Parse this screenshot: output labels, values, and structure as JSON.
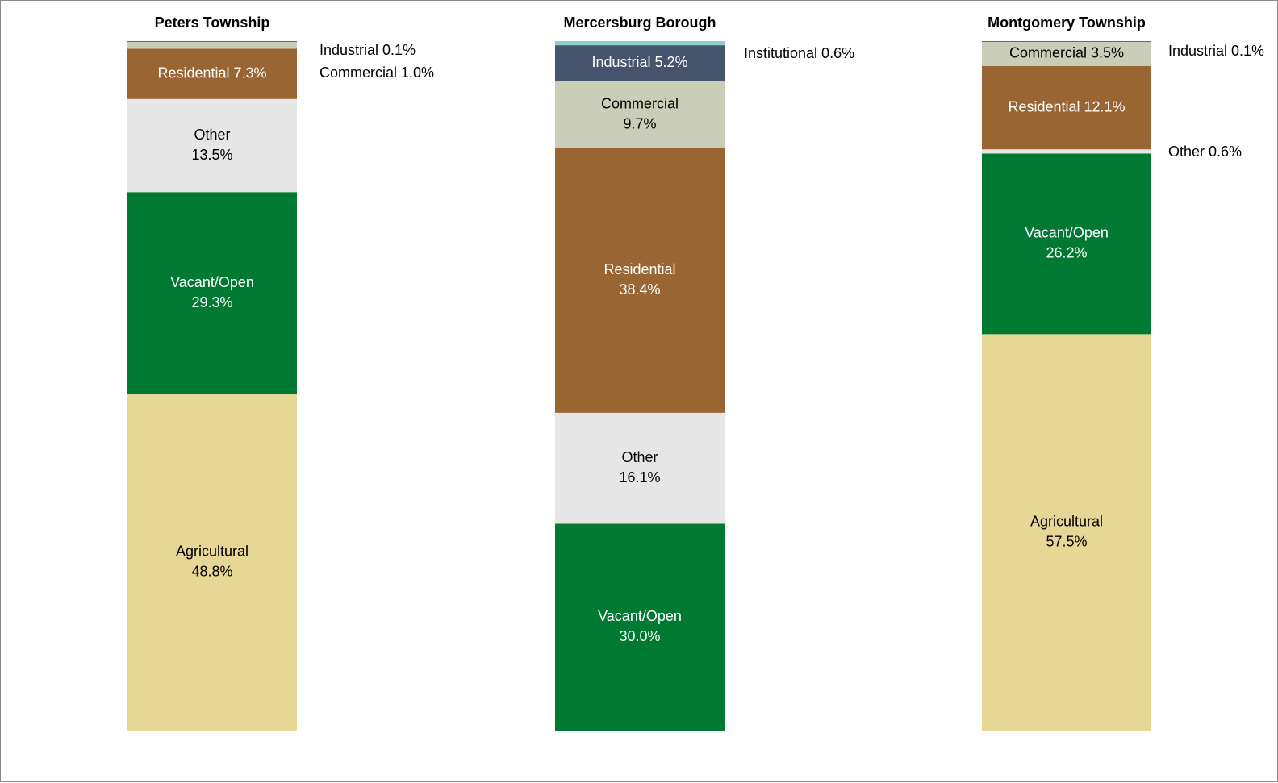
{
  "chart_data": {
    "type": "bar",
    "stacked": true,
    "unit": "%",
    "columns": [
      {
        "title": "Peters Township",
        "segments": [
          {
            "name": "Agricultural",
            "value": 48.8,
            "color": "#E6D796",
            "text_color": "#000000",
            "label_mode": "inside-2line"
          },
          {
            "name": "Vacant/Open",
            "value": 29.3,
            "color": "#007A33",
            "text_color": "#FFFFFF",
            "label_mode": "inside-2line"
          },
          {
            "name": "Other",
            "value": 13.5,
            "color": "#E6E6E6",
            "text_color": "#000000",
            "label_mode": "inside-2line"
          },
          {
            "name": "Residential",
            "value": 7.3,
            "color": "#996633",
            "text_color": "#FFFFFF",
            "label_mode": "inside-1line"
          },
          {
            "name": "Commercial",
            "value": 1.0,
            "color": "#CACDB7",
            "text_color": "#000000",
            "label_mode": "outside",
            "outside_text": "Commercial 1.0%"
          },
          {
            "name": "Industrial",
            "value": 0.1,
            "color": "#46536C",
            "text_color": "#FFFFFF",
            "label_mode": "outside",
            "outside_text": "Industrial  0.1%"
          }
        ]
      },
      {
        "title": "Mercersburg Borough",
        "segments": [
          {
            "name": "Vacant/Open",
            "value": 30.0,
            "color": "#007A33",
            "text_color": "#FFFFFF",
            "label_mode": "inside-2line"
          },
          {
            "name": "Other",
            "value": 16.1,
            "color": "#E6E6E6",
            "text_color": "#000000",
            "label_mode": "inside-2line"
          },
          {
            "name": "Residential",
            "value": 38.4,
            "color": "#996633",
            "text_color": "#FFFFFF",
            "label_mode": "inside-2line"
          },
          {
            "name": "Commercial",
            "value": 9.7,
            "color": "#CACDB7",
            "text_color": "#000000",
            "label_mode": "inside-2line"
          },
          {
            "name": "Industrial",
            "value": 5.2,
            "color": "#46536C",
            "text_color": "#FFFFFF",
            "label_mode": "inside-1line"
          },
          {
            "name": "Institutional",
            "value": 0.6,
            "color": "#8ED0C6",
            "text_color": "#000000",
            "label_mode": "outside",
            "outside_text": "Institutional 0.6%"
          }
        ]
      },
      {
        "title": "Montgomery Township",
        "segments": [
          {
            "name": "Agricultural",
            "value": 57.5,
            "color": "#E6D796",
            "text_color": "#000000",
            "label_mode": "inside-2line"
          },
          {
            "name": "Vacant/Open",
            "value": 26.2,
            "color": "#007A33",
            "text_color": "#FFFFFF",
            "label_mode": "inside-2line"
          },
          {
            "name": "Other",
            "value": 0.6,
            "color": "#E6E6E6",
            "text_color": "#000000",
            "label_mode": "outside",
            "outside_text": "Other 0.6%"
          },
          {
            "name": "Residential",
            "value": 12.1,
            "color": "#996633",
            "text_color": "#FFFFFF",
            "label_mode": "inside-1line"
          },
          {
            "name": "Commercial",
            "value": 3.5,
            "color": "#CACDB7",
            "text_color": "#000000",
            "label_mode": "inside-1line",
            "inside_text": "Commercial  3.5%"
          },
          {
            "name": "Industrial",
            "value": 0.1,
            "color": "#46536C",
            "text_color": "#FFFFFF",
            "label_mode": "outside",
            "outside_text": "Industrial 0.1%"
          }
        ]
      }
    ],
    "ylim": [
      0,
      100
    ],
    "grid": false,
    "legend": "none"
  }
}
